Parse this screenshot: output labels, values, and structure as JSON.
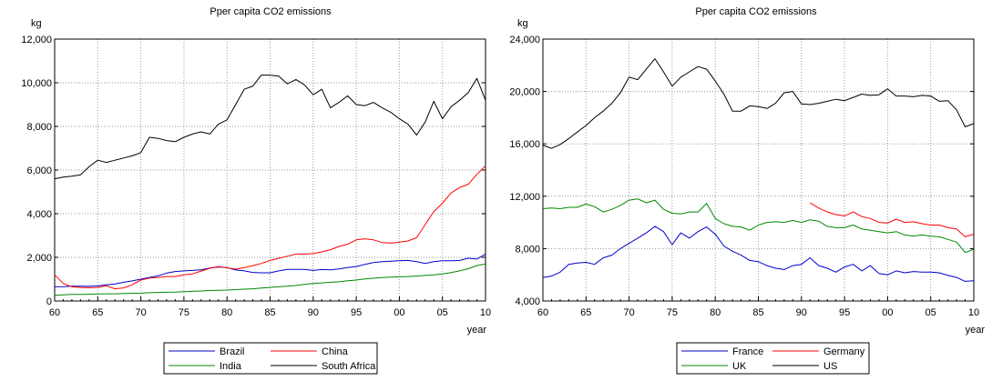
{
  "chart_data": [
    {
      "type": "line",
      "title": "Pper capita CO2 emissions",
      "ylabel": "kg",
      "xlabel": "year",
      "ylim": [
        0,
        12000
      ],
      "xlim": [
        1960,
        2010
      ],
      "yticks": [
        0,
        2000,
        4000,
        6000,
        8000,
        10000,
        12000
      ],
      "ytick_labels": [
        "0",
        "2,000",
        "4,000",
        "6,000",
        "8,000",
        "10,000",
        "12,000"
      ],
      "xticks": [
        1960,
        1965,
        1970,
        1975,
        1980,
        1985,
        1990,
        1995,
        2000,
        2005,
        2010
      ],
      "xtick_labels": [
        "60",
        "65",
        "70",
        "75",
        "80",
        "85",
        "90",
        "95",
        "00",
        "05",
        "10"
      ],
      "legend_position": "bottom",
      "x": [
        1960,
        1961,
        1962,
        1963,
        1964,
        1965,
        1966,
        1967,
        1968,
        1969,
        1970,
        1971,
        1972,
        1973,
        1974,
        1975,
        1976,
        1977,
        1978,
        1979,
        1980,
        1981,
        1982,
        1983,
        1984,
        1985,
        1986,
        1987,
        1988,
        1989,
        1990,
        1991,
        1992,
        1993,
        1994,
        1995,
        1996,
        1997,
        1998,
        1999,
        2000,
        2001,
        2002,
        2003,
        2004,
        2005,
        2006,
        2007,
        2008,
        2009,
        2010
      ],
      "series": [
        {
          "name": "Brazil",
          "color": "#0000cc",
          "values": [
            650,
            660,
            680,
            680,
            670,
            690,
            740,
            780,
            860,
            920,
            1000,
            1080,
            1150,
            1280,
            1350,
            1380,
            1400,
            1430,
            1510,
            1560,
            1530,
            1420,
            1380,
            1310,
            1290,
            1290,
            1380,
            1450,
            1450,
            1450,
            1400,
            1440,
            1430,
            1470,
            1530,
            1580,
            1680,
            1760,
            1800,
            1820,
            1840,
            1860,
            1800,
            1720,
            1800,
            1840,
            1840,
            1860,
            1960,
            1920,
            2150
          ]
        },
        {
          "name": "China",
          "color": "#ff0000",
          "values": [
            1200,
            800,
            650,
            620,
            610,
            620,
            700,
            560,
            600,
            740,
            960,
            1050,
            1080,
            1120,
            1120,
            1200,
            1240,
            1370,
            1500,
            1580,
            1520,
            1460,
            1530,
            1620,
            1720,
            1860,
            1960,
            2050,
            2150,
            2150,
            2170,
            2250,
            2350,
            2500,
            2600,
            2800,
            2850,
            2800,
            2680,
            2650,
            2700,
            2750,
            2900,
            3500,
            4100,
            4480,
            4950,
            5200,
            5350,
            5800,
            6200
          ]
        },
        {
          "name": "India",
          "color": "#008800",
          "values": [
            260,
            280,
            300,
            300,
            310,
            320,
            330,
            330,
            340,
            350,
            360,
            380,
            390,
            400,
            410,
            430,
            440,
            460,
            480,
            490,
            500,
            520,
            540,
            560,
            590,
            620,
            650,
            680,
            710,
            760,
            800,
            830,
            860,
            880,
            930,
            960,
            1010,
            1040,
            1070,
            1090,
            1110,
            1120,
            1140,
            1170,
            1200,
            1240,
            1300,
            1380,
            1480,
            1620,
            1700
          ]
        },
        {
          "name": "South Africa",
          "color": "#000000",
          "values": [
            5600,
            5680,
            5720,
            5780,
            6150,
            6450,
            6350,
            6450,
            6550,
            6650,
            6800,
            7500,
            7450,
            7350,
            7300,
            7500,
            7650,
            7750,
            7650,
            8100,
            8300,
            9000,
            9700,
            9850,
            10350,
            10350,
            10300,
            9950,
            10150,
            9900,
            9450,
            9700,
            8850,
            9100,
            9400,
            9000,
            8950,
            9100,
            8850,
            8650,
            8350,
            8100,
            7600,
            8200,
            9150,
            8350,
            8900,
            9200,
            9550,
            10200,
            9200
          ]
        }
      ]
    },
    {
      "type": "line",
      "title": "Pper capita CO2 emissions",
      "ylabel": "kg",
      "xlabel": "year",
      "ylim": [
        4000,
        24000
      ],
      "xlim": [
        1960,
        2010
      ],
      "yticks": [
        4000,
        8000,
        12000,
        16000,
        20000,
        24000
      ],
      "ytick_labels": [
        "4,000",
        "8,000",
        "12,000",
        "16,000",
        "20,000",
        "24,000"
      ],
      "xticks": [
        1960,
        1965,
        1970,
        1975,
        1980,
        1985,
        1990,
        1995,
        2000,
        2005,
        2010
      ],
      "xtick_labels": [
        "60",
        "65",
        "70",
        "75",
        "80",
        "85",
        "90",
        "95",
        "00",
        "05",
        "10"
      ],
      "legend_position": "bottom",
      "x": [
        1960,
        1961,
        1962,
        1963,
        1964,
        1965,
        1966,
        1967,
        1968,
        1969,
        1970,
        1971,
        1972,
        1973,
        1974,
        1975,
        1976,
        1977,
        1978,
        1979,
        1980,
        1981,
        1982,
        1983,
        1984,
        1985,
        1986,
        1987,
        1988,
        1989,
        1990,
        1991,
        1992,
        1993,
        1994,
        1995,
        1996,
        1997,
        1998,
        1999,
        2000,
        2001,
        2002,
        2003,
        2004,
        2005,
        2006,
        2007,
        2008,
        2009,
        2010
      ],
      "series": [
        {
          "name": "France",
          "color": "#0000cc",
          "values": [
            5800,
            5900,
            6200,
            6800,
            6900,
            6950,
            6800,
            7300,
            7500,
            8000,
            8400,
            8800,
            9200,
            9700,
            9300,
            8300,
            9200,
            8800,
            9300,
            9650,
            9100,
            8200,
            7800,
            7500,
            7100,
            7000,
            6700,
            6500,
            6400,
            6700,
            6800,
            7300,
            6700,
            6500,
            6200,
            6600,
            6800,
            6300,
            6700,
            6100,
            6000,
            6300,
            6150,
            6250,
            6200,
            6200,
            6150,
            5950,
            5800,
            5500,
            5550
          ]
        },
        {
          "name": "Germany",
          "color": "#ff0000",
          "values": [
            null,
            null,
            null,
            null,
            null,
            null,
            null,
            null,
            null,
            null,
            null,
            null,
            null,
            null,
            null,
            null,
            null,
            null,
            null,
            null,
            null,
            null,
            null,
            null,
            null,
            null,
            null,
            null,
            null,
            null,
            null,
            11500,
            11100,
            10800,
            10600,
            10500,
            10800,
            10450,
            10300,
            10000,
            9950,
            10250,
            10000,
            10050,
            9900,
            9800,
            9800,
            9600,
            9500,
            8900,
            9100
          ]
        },
        {
          "name": "UK",
          "color": "#008800",
          "values": [
            11050,
            11100,
            11050,
            11150,
            11150,
            11400,
            11200,
            10800,
            11000,
            11300,
            11700,
            11800,
            11500,
            11700,
            11000,
            10700,
            10650,
            10800,
            10800,
            11450,
            10300,
            9900,
            9700,
            9650,
            9400,
            9800,
            10000,
            10050,
            10000,
            10150,
            10000,
            10200,
            10100,
            9700,
            9600,
            9600,
            9800,
            9500,
            9400,
            9300,
            9200,
            9300,
            9050,
            8950,
            9050,
            8950,
            8900,
            8700,
            8500,
            7700,
            7950
          ]
        },
        {
          "name": "US",
          "color": "#000000",
          "values": [
            15900,
            15650,
            15950,
            16400,
            16900,
            17400,
            18000,
            18500,
            19100,
            19900,
            21100,
            20900,
            21700,
            22500,
            21500,
            20400,
            21100,
            21500,
            21900,
            21700,
            20800,
            19800,
            18500,
            18500,
            18900,
            18850,
            18700,
            19100,
            19900,
            20000,
            19050,
            19000,
            19100,
            19250,
            19400,
            19300,
            19550,
            19800,
            19700,
            19750,
            20200,
            19650,
            19650,
            19600,
            19700,
            19650,
            19250,
            19300,
            18600,
            17300,
            17550
          ]
        }
      ]
    }
  ]
}
